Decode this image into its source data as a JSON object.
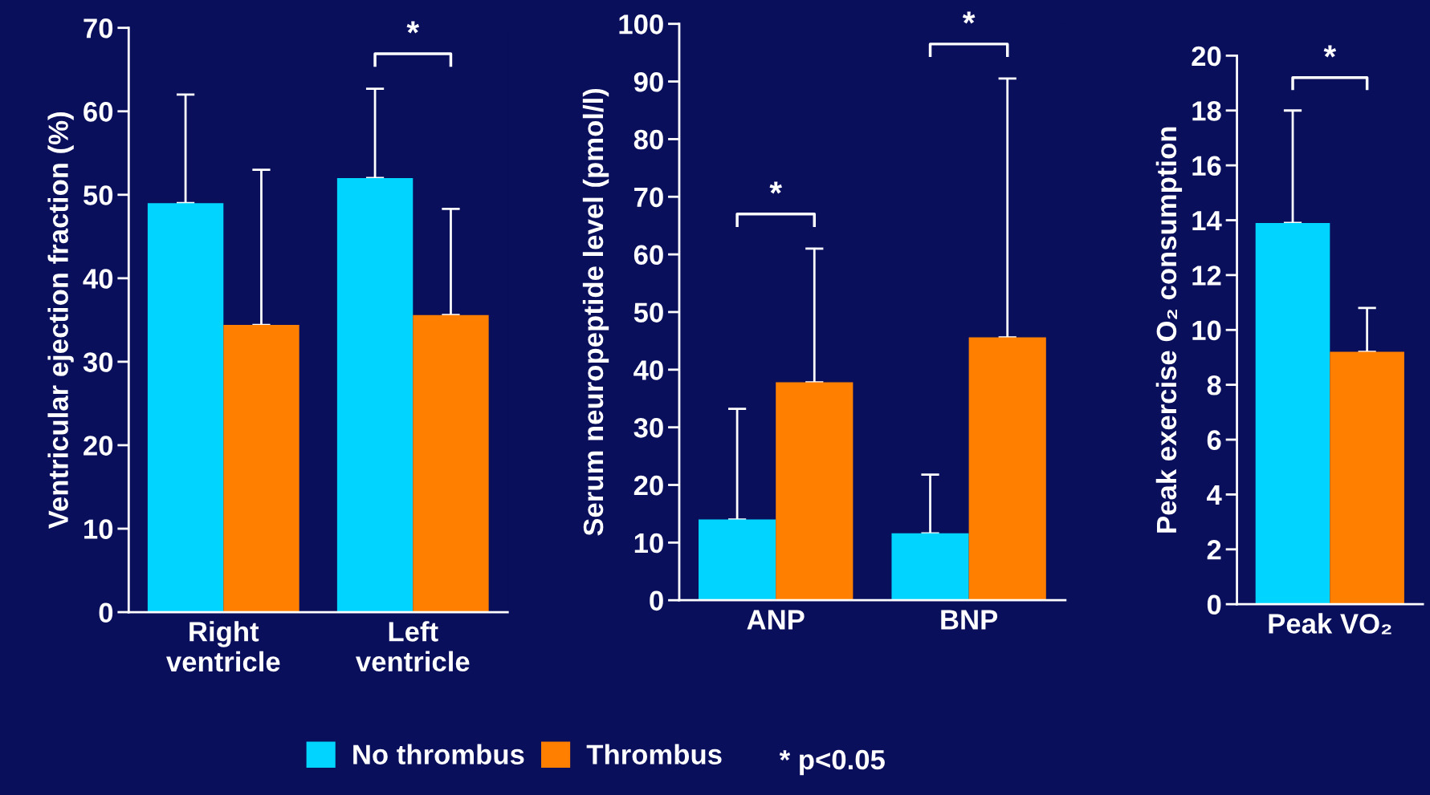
{
  "chart_data": [
    {
      "type": "bar",
      "ylabel": "Ventricular ejection fraction (%)",
      "categories": [
        "Right\nventricle",
        "Left\nventricle"
      ],
      "ylim": [
        0,
        70
      ],
      "yticks": [
        0,
        10,
        20,
        30,
        40,
        50,
        60,
        70
      ],
      "legend": "bottom",
      "series": [
        {
          "name": "No thrombus",
          "color": "#00d4ff",
          "values": [
            49,
            52
          ],
          "errors": [
            [
              49,
              62
            ],
            [
              52,
              62.7
            ]
          ]
        },
        {
          "name": "Thrombus",
          "color": "#ff7f00",
          "values": [
            34.4,
            35.6
          ],
          "errors": [
            [
              34.4,
              53
            ],
            [
              35.6,
              48.3
            ]
          ]
        }
      ],
      "annotations": [
        "*",
        "* p<0.05"
      ]
    },
    {
      "type": "bar",
      "ylabel": "Serum neuropeptide level (pmol/l)",
      "categories": [
        "ANP",
        "BNP"
      ],
      "ylim": [
        0,
        100
      ],
      "yticks": [
        0,
        10,
        20,
        30,
        40,
        50,
        60,
        70,
        80,
        90,
        100
      ],
      "series": [
        {
          "color": "#00d4ff",
          "values": [
            14,
            11.6
          ],
          "errors": [
            [
              14,
              33.2
            ],
            [
              11.6,
              21.8
            ]
          ]
        },
        {
          "color": "#ff7f00",
          "values": [
            37.8,
            45.6
          ],
          "errors": [
            [
              37.8,
              61
            ],
            [
              45.6,
              90.5
            ]
          ]
        }
      ],
      "annotations": [
        "*",
        "*"
      ]
    },
    {
      "type": "bar",
      "ylabel": "Peak exercise O₂ consumption",
      "categories": [
        "Peak VO₂"
      ],
      "ylim": [
        0,
        20
      ],
      "yticks": [
        0,
        2,
        4,
        6,
        8,
        10,
        12,
        14,
        16,
        18,
        20
      ],
      "series": [
        {
          "color": "#00d4ff",
          "values": [
            13.9
          ],
          "errors": [
            [
              13.9,
              18
            ]
          ]
        },
        {
          "color": "#ff7f00",
          "values": [
            9.2
          ],
          "errors": [
            [
              9.2,
              10.8
            ]
          ]
        }
      ],
      "annotations": [
        "*"
      ]
    }
  ]
}
